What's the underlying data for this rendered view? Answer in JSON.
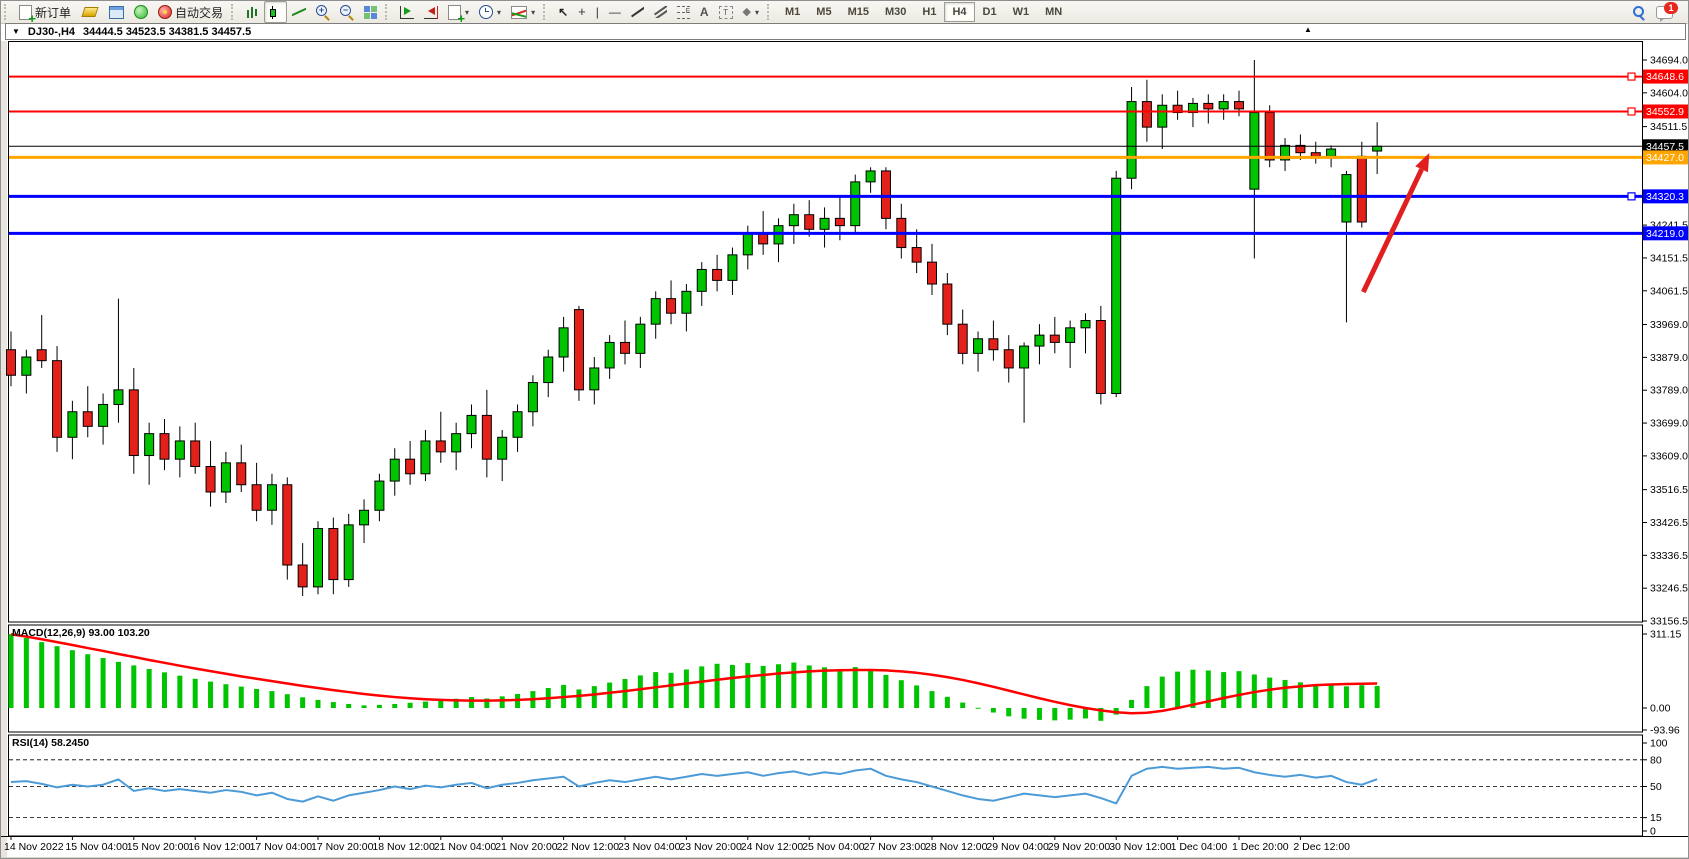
{
  "toolbar": {
    "new_order_label": "新订单",
    "autotrade_label": "自动交易",
    "timeframes": [
      "M1",
      "M5",
      "M15",
      "M30",
      "H1",
      "H4",
      "D1",
      "W1",
      "MN"
    ],
    "active_timeframe": "H4",
    "notification_count": "1",
    "fibonacci_letter": "F",
    "text_letter": "A",
    "label_letter": "T",
    "shapes_glyph": "◆",
    "cursor_glyph": "↖",
    "cross_glyph": "+",
    "vline_glyph": "|",
    "hline_glyph": "—"
  },
  "title_strip": {
    "dropdown_glyph": "▼",
    "symbol_period": "DJ30-,H4",
    "ohlc_text": "34444.5 34523.5 34381.5 34457.5"
  },
  "indicators": {
    "macd_label": "MACD(12,26,9)",
    "macd_values": "93.00 103.20",
    "rsi_label": "RSI(14)",
    "rsi_value": "58.2450"
  },
  "chart_data": {
    "type": "candlestick",
    "symbol": "DJ30-",
    "period": "H4",
    "current_bar": {
      "open": 34444.5,
      "high": 34523.5,
      "low": 34381.5,
      "close": 34457.5
    },
    "y_range": {
      "top_price": 34735,
      "bottom_price": 33156.5
    },
    "price_axis_ticks": [
      34694.0,
      34604.0,
      34511.5,
      34241.5,
      34151.5,
      34061.5,
      33969.0,
      33879.0,
      33789.0,
      33699.0,
      33609.0,
      33516.5,
      33426.5,
      33336.5,
      33246.5,
      33156.5
    ],
    "time_labels": [
      "14 Nov 2022",
      "15 Nov 04:00",
      "15 Nov 20:00",
      "16 Nov 12:00",
      "17 Nov 04:00",
      "17 Nov 20:00",
      "18 Nov 12:00",
      "21 Nov 04:00",
      "21 Nov 20:00",
      "22 Nov 12:00",
      "23 Nov 04:00",
      "23 Nov 20:00",
      "24 Nov 12:00",
      "25 Nov 04:00",
      "27 Nov 23:00",
      "28 Nov 12:00",
      "29 Nov 04:00",
      "29 Nov 20:00",
      "30 Nov 12:00",
      "1 Dec 04:00",
      "1 Dec 20:00",
      "2 Dec 12:00"
    ],
    "label_every_n_bars": 4,
    "ohlc": [
      [
        33900,
        33950,
        33800,
        33830
      ],
      [
        33830,
        33900,
        33780,
        33880
      ],
      [
        33900,
        33995,
        33850,
        33870
      ],
      [
        33870,
        33910,
        33620,
        33660
      ],
      [
        33660,
        33760,
        33600,
        33730
      ],
      [
        33730,
        33800,
        33660,
        33690
      ],
      [
        33690,
        33780,
        33640,
        33750
      ],
      [
        33750,
        34040,
        33700,
        33790
      ],
      [
        33790,
        33850,
        33560,
        33610
      ],
      [
        33610,
        33700,
        33530,
        33670
      ],
      [
        33670,
        33710,
        33570,
        33600
      ],
      [
        33600,
        33690,
        33550,
        33650
      ],
      [
        33650,
        33700,
        33560,
        33580
      ],
      [
        33580,
        33650,
        33470,
        33510
      ],
      [
        33510,
        33620,
        33480,
        33590
      ],
      [
        33590,
        33640,
        33510,
        33530
      ],
      [
        33530,
        33590,
        33430,
        33460
      ],
      [
        33460,
        33560,
        33420,
        33530
      ],
      [
        33530,
        33550,
        33270,
        33310
      ],
      [
        33310,
        33370,
        33225,
        33250
      ],
      [
        33250,
        33430,
        33230,
        33410
      ],
      [
        33410,
        33440,
        33230,
        33270
      ],
      [
        33270,
        33450,
        33250,
        33420
      ],
      [
        33420,
        33490,
        33370,
        33460
      ],
      [
        33460,
        33560,
        33430,
        33540
      ],
      [
        33540,
        33630,
        33500,
        33600
      ],
      [
        33600,
        33650,
        33530,
        33560
      ],
      [
        33560,
        33680,
        33540,
        33650
      ],
      [
        33650,
        33730,
        33590,
        33620
      ],
      [
        33620,
        33700,
        33570,
        33670
      ],
      [
        33670,
        33750,
        33630,
        33720
      ],
      [
        33720,
        33790,
        33550,
        33600
      ],
      [
        33600,
        33680,
        33540,
        33660
      ],
      [
        33660,
        33750,
        33620,
        33730
      ],
      [
        33730,
        33830,
        33690,
        33810
      ],
      [
        33810,
        33900,
        33770,
        33880
      ],
      [
        33880,
        33990,
        33840,
        33960
      ],
      [
        34010,
        34020,
        33760,
        33790
      ],
      [
        33790,
        33880,
        33750,
        33850
      ],
      [
        33850,
        33940,
        33820,
        33920
      ],
      [
        33920,
        33980,
        33860,
        33890
      ],
      [
        33890,
        33990,
        33850,
        33970
      ],
      [
        33970,
        34060,
        33930,
        34040
      ],
      [
        34040,
        34090,
        33970,
        34000
      ],
      [
        34000,
        34080,
        33950,
        34060
      ],
      [
        34060,
        34140,
        34020,
        34120
      ],
      [
        34120,
        34160,
        34060,
        34090
      ],
      [
        34090,
        34180,
        34050,
        34160
      ],
      [
        34160,
        34240,
        34120,
        34220
      ],
      [
        34220,
        34280,
        34160,
        34190
      ],
      [
        34190,
        34260,
        34140,
        34240
      ],
      [
        34240,
        34300,
        34190,
        34270
      ],
      [
        34270,
        34310,
        34210,
        34230
      ],
      [
        34230,
        34290,
        34180,
        34260
      ],
      [
        34260,
        34320,
        34200,
        34240
      ],
      [
        34240,
        34380,
        34220,
        34360
      ],
      [
        34360,
        34400,
        34330,
        34390
      ],
      [
        34390,
        34400,
        34230,
        34260
      ],
      [
        34260,
        34300,
        34150,
        34180
      ],
      [
        34180,
        34230,
        34110,
        34140
      ],
      [
        34140,
        34190,
        34050,
        34080
      ],
      [
        34080,
        34110,
        33940,
        33970
      ],
      [
        33970,
        34010,
        33860,
        33890
      ],
      [
        33890,
        33950,
        33840,
        33930
      ],
      [
        33930,
        33980,
        33870,
        33900
      ],
      [
        33900,
        33940,
        33810,
        33850
      ],
      [
        33850,
        33920,
        33700,
        33910
      ],
      [
        33910,
        33970,
        33860,
        33940
      ],
      [
        33940,
        33990,
        33890,
        33920
      ],
      [
        33920,
        33980,
        33850,
        33960
      ],
      [
        33960,
        34000,
        33890,
        33980
      ],
      [
        33980,
        34020,
        33750,
        33780
      ],
      [
        33780,
        34390,
        33770,
        34370
      ],
      [
        34370,
        34620,
        34340,
        34580
      ],
      [
        34580,
        34640,
        34470,
        34510
      ],
      [
        34510,
        34600,
        34450,
        34570
      ],
      [
        34570,
        34610,
        34530,
        34550
      ],
      [
        34550,
        34590,
        34510,
        34575
      ],
      [
        34575,
        34600,
        34520,
        34560
      ],
      [
        34560,
        34600,
        34530,
        34580
      ],
      [
        34580,
        34610,
        34540,
        34560
      ],
      [
        34340,
        34694,
        34150,
        34550
      ],
      [
        34550,
        34570,
        34400,
        34420
      ],
      [
        34420,
        34480,
        34390,
        34460
      ],
      [
        34460,
        34490,
        34420,
        34440
      ],
      [
        34440,
        34470,
        34410,
        34430
      ],
      [
        34430,
        34460,
        34400,
        34450
      ],
      [
        34250,
        34390,
        33975,
        34380
      ],
      [
        34430,
        34470,
        34235,
        34250
      ],
      [
        34444.5,
        34523.5,
        34381.5,
        34457.5
      ]
    ],
    "hlines": [
      {
        "price": 34648.6,
        "label": "34648.6",
        "color": "#FF0000",
        "width": 2,
        "handle": true,
        "role": "resistance"
      },
      {
        "price": 34552.9,
        "label": "34552.9",
        "color": "#FF0000",
        "width": 2,
        "handle": true,
        "role": "resistance"
      },
      {
        "price": 34457.5,
        "label": "34457.5",
        "color": "#000000",
        "width": 1,
        "handle": false,
        "role": "bid-line"
      },
      {
        "price": 34427.0,
        "label": "34427.0",
        "color": "#FFA500",
        "width": 3,
        "handle": false,
        "role": "level"
      },
      {
        "price": 34320.3,
        "label": "34320.3",
        "color": "#0000FF",
        "width": 3,
        "handle": true,
        "role": "support"
      },
      {
        "price": 34219.0,
        "label": "34219.0",
        "color": "#0000FF",
        "width": 3,
        "handle": false,
        "role": "support"
      }
    ],
    "annotation_arrow": {
      "from_bar": 88.1,
      "from_price": 34058,
      "to_bar": 92.4,
      "to_price": 34439,
      "color": "#E02020"
    },
    "macd": {
      "params": "12,26,9",
      "axis_values": [
        311.15,
        0.0,
        -93.96
      ],
      "axis_labels": [
        "311.15",
        "0.00",
        "-93.96"
      ],
      "current": [
        93.0,
        103.2
      ],
      "histogram": [
        311,
        294,
        277,
        260,
        243,
        226,
        210,
        194,
        179,
        164,
        150,
        136,
        123,
        111,
        100,
        90,
        80,
        71,
        58,
        45,
        34,
        25,
        17,
        11,
        13,
        17,
        22,
        27,
        33,
        39,
        46,
        40,
        49,
        59,
        71,
        84,
        97,
        78,
        92,
        107,
        122,
        137,
        151,
        148,
        162,
        175,
        186,
        181,
        189,
        177,
        184,
        191,
        179,
        171,
        160,
        172,
        164,
        139,
        117,
        95,
        71,
        47,
        23,
        1,
        -19,
        -35,
        -45,
        -50,
        -52,
        -49,
        -44,
        -54,
        -28,
        34,
        92,
        132,
        153,
        161,
        158,
        151,
        155,
        141,
        128,
        118,
        108,
        101,
        96,
        91,
        96,
        93
      ],
      "signal": [
        310,
        300,
        289,
        277,
        265,
        252,
        240,
        227,
        215,
        202,
        190,
        178,
        166,
        155,
        144,
        133,
        123,
        113,
        103,
        93,
        84,
        75,
        67,
        59,
        52,
        46,
        41,
        37,
        34,
        32,
        31,
        31,
        32,
        34,
        37,
        41,
        46,
        51,
        57,
        64,
        71,
        79,
        87,
        95,
        103,
        111,
        119,
        126,
        133,
        139,
        145,
        150,
        154,
        157,
        159,
        160,
        160,
        158,
        154,
        148,
        140,
        130,
        118,
        104,
        89,
        73,
        57,
        41,
        26,
        12,
        0,
        -10,
        -18,
        -22,
        -20,
        -12,
        0,
        14,
        28,
        42,
        55,
        67,
        77,
        85,
        91,
        96,
        99,
        101,
        102,
        103.2
      ]
    },
    "rsi": {
      "period": 14,
      "current": 58.245,
      "levels": [
        100,
        80,
        50,
        15,
        0
      ],
      "dashed_levels": [
        80,
        50,
        15
      ],
      "values": [
        55,
        56,
        53,
        49,
        52,
        50,
        52,
        58,
        45,
        48,
        45,
        47,
        45,
        43,
        46,
        44,
        40,
        43,
        36,
        33,
        39,
        34,
        40,
        43,
        46,
        50,
        47,
        51,
        49,
        52,
        54,
        48,
        52,
        54,
        57,
        59,
        61,
        50,
        54,
        57,
        55,
        58,
        61,
        58,
        61,
        64,
        62,
        64,
        66,
        62,
        65,
        67,
        63,
        66,
        64,
        68,
        70,
        62,
        58,
        55,
        50,
        45,
        40,
        36,
        34,
        38,
        42,
        40,
        38,
        40,
        42,
        37,
        31,
        62,
        70,
        72,
        70,
        71,
        72,
        70,
        71,
        66,
        63,
        61,
        63,
        60,
        62,
        55,
        52,
        58.2
      ]
    },
    "colors": {
      "bull": "#00C400",
      "bear": "#E3211A",
      "wick": "#000000",
      "macd_histogram": "#00C400",
      "macd_signal": "#FF0000",
      "rsi_line": "#4D9BD6",
      "arrow": "#E02020",
      "badge_text": "#FFFFFF",
      "background": "#FFFFFF"
    }
  }
}
